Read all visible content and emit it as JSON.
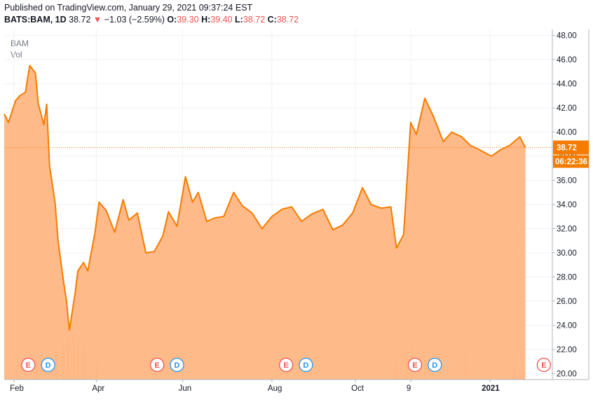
{
  "header": {
    "published": "Published on TradingView.com, January 29, 2021 09:37:24 EST",
    "symbol": "BATS:BAM, 1D",
    "last": "38.72",
    "arrow": "▼",
    "change": "−1.03 (−2.59%)",
    "o_label": "O:",
    "o_val": "39.30",
    "h_label": "H:",
    "h_val": "39.40",
    "l_label": "L:",
    "l_val": "38.72",
    "c_label": "C:",
    "c_val": "38.72"
  },
  "pane_labels": {
    "ticker": "BAM",
    "vol": "Vol"
  },
  "colors": {
    "line": "#f57c00",
    "area": "#ffb27d",
    "volume": "#f3c6a3",
    "earnings": "#ef5350",
    "dividend": "#2196f3",
    "tag": "#f57c00",
    "grid": "#eef0f3"
  },
  "price_tag": {
    "price": "38.72",
    "countdown": "06:22:36"
  },
  "events": [
    {
      "label": "E",
      "kind": "earnings",
      "x": "2020-02-13"
    },
    {
      "label": "D",
      "kind": "dividend",
      "x": "2020-02-27"
    },
    {
      "label": "E",
      "kind": "earnings",
      "x": "2020-05-14"
    },
    {
      "label": "D",
      "kind": "dividend",
      "x": "2020-05-28"
    },
    {
      "label": "E",
      "kind": "earnings",
      "x": "2020-08-13"
    },
    {
      "label": "D",
      "kind": "dividend",
      "x": "2020-08-27"
    },
    {
      "label": "E",
      "kind": "earnings",
      "x": "2020-11-12"
    },
    {
      "label": "D",
      "kind": "dividend",
      "x": "2020-11-26"
    },
    {
      "label": "E",
      "kind": "earnings",
      "x": "2021-02-11"
    }
  ],
  "chart_data": {
    "type": "area",
    "title": "BATS:BAM, 1D",
    "xlabel": "",
    "ylabel": "",
    "x_ticks": [
      {
        "label": "Feb",
        "x": "2020-02-03"
      },
      {
        "label": "Apr",
        "x": "2020-04-01"
      },
      {
        "label": "Jun",
        "x": "2020-06-01"
      },
      {
        "label": "Aug",
        "x": "2020-08-03"
      },
      {
        "label": "Oct",
        "x": "2020-10-01"
      },
      {
        "label": "9",
        "x": "2020-11-09"
      },
      {
        "label": "2021",
        "x": "2021-01-04"
      }
    ],
    "y_ticks": [
      20,
      22,
      24,
      26,
      28,
      30,
      32,
      34,
      36,
      38,
      40,
      42,
      44,
      46,
      48
    ],
    "ylim": [
      19.5,
      48.5
    ],
    "xlim": [
      "2020-01-27",
      "2021-02-17"
    ],
    "grid": true,
    "series": [
      {
        "name": "BAM",
        "x": [
          "2020-01-27",
          "2020-01-30",
          "2020-02-04",
          "2020-02-07",
          "2020-02-11",
          "2020-02-14",
          "2020-02-18",
          "2020-02-20",
          "2020-02-24",
          "2020-02-26",
          "2020-02-28",
          "2020-03-03",
          "2020-03-05",
          "2020-03-09",
          "2020-03-11",
          "2020-03-13",
          "2020-03-17",
          "2020-03-19",
          "2020-03-23",
          "2020-03-26",
          "2020-03-31",
          "2020-04-03",
          "2020-04-08",
          "2020-04-14",
          "2020-04-20",
          "2020-04-24",
          "2020-04-30",
          "2020-05-06",
          "2020-05-12",
          "2020-05-18",
          "2020-05-22",
          "2020-05-28",
          "2020-06-03",
          "2020-06-08",
          "2020-06-12",
          "2020-06-18",
          "2020-06-24",
          "2020-06-30",
          "2020-07-07",
          "2020-07-13",
          "2020-07-20",
          "2020-07-27",
          "2020-08-03",
          "2020-08-10",
          "2020-08-17",
          "2020-08-24",
          "2020-08-31",
          "2020-09-08",
          "2020-09-15",
          "2020-09-22",
          "2020-09-29",
          "2020-10-06",
          "2020-10-12",
          "2020-10-19",
          "2020-10-26",
          "2020-10-30",
          "2020-11-04",
          "2020-11-09",
          "2020-11-13",
          "2020-11-19",
          "2020-11-25",
          "2020-12-02",
          "2020-12-08",
          "2020-12-15",
          "2020-12-21",
          "2020-12-28",
          "2021-01-05",
          "2021-01-11",
          "2021-01-18",
          "2021-01-25",
          "2021-01-29"
        ],
        "values": [
          41.5,
          40.8,
          42.6,
          43.0,
          43.3,
          45.5,
          44.9,
          42.4,
          40.6,
          42.3,
          37.2,
          34.1,
          31.0,
          27.5,
          26.0,
          23.6,
          26.6,
          28.5,
          29.2,
          28.5,
          31.6,
          34.2,
          33.5,
          31.7,
          34.4,
          32.7,
          33.3,
          30.0,
          30.1,
          31.4,
          33.4,
          32.2,
          36.3,
          34.2,
          35.0,
          32.6,
          32.9,
          33.0,
          35.0,
          33.9,
          33.3,
          32.0,
          33.0,
          33.6,
          33.8,
          32.6,
          33.2,
          33.6,
          31.9,
          32.3,
          33.3,
          35.4,
          34.0,
          33.7,
          33.8,
          30.4,
          31.5,
          40.8,
          39.8,
          42.8,
          41.3,
          39.2,
          40.0,
          39.6,
          38.9,
          38.5,
          38.0,
          38.5,
          38.9,
          39.6,
          38.72
        ]
      },
      {
        "name": "Vol",
        "x": [
          "2020-02-05",
          "2020-02-19",
          "2020-03-04",
          "2020-03-09",
          "2020-03-12",
          "2020-03-16",
          "2020-03-19",
          "2020-03-23",
          "2020-04-02",
          "2020-05-14",
          "2020-08-14",
          "2020-10-30",
          "2020-11-06",
          "2020-11-10",
          "2020-11-19",
          "2020-12-18",
          "2021-01-21",
          "2021-01-27"
        ],
        "values": [
          1.5,
          2.1,
          3.0,
          3.6,
          4.3,
          5.1,
          4.0,
          3.5,
          1.6,
          1.1,
          1.3,
          1.8,
          2.7,
          3.4,
          2.2,
          3.1,
          1.9,
          2.4
        ]
      }
    ]
  }
}
